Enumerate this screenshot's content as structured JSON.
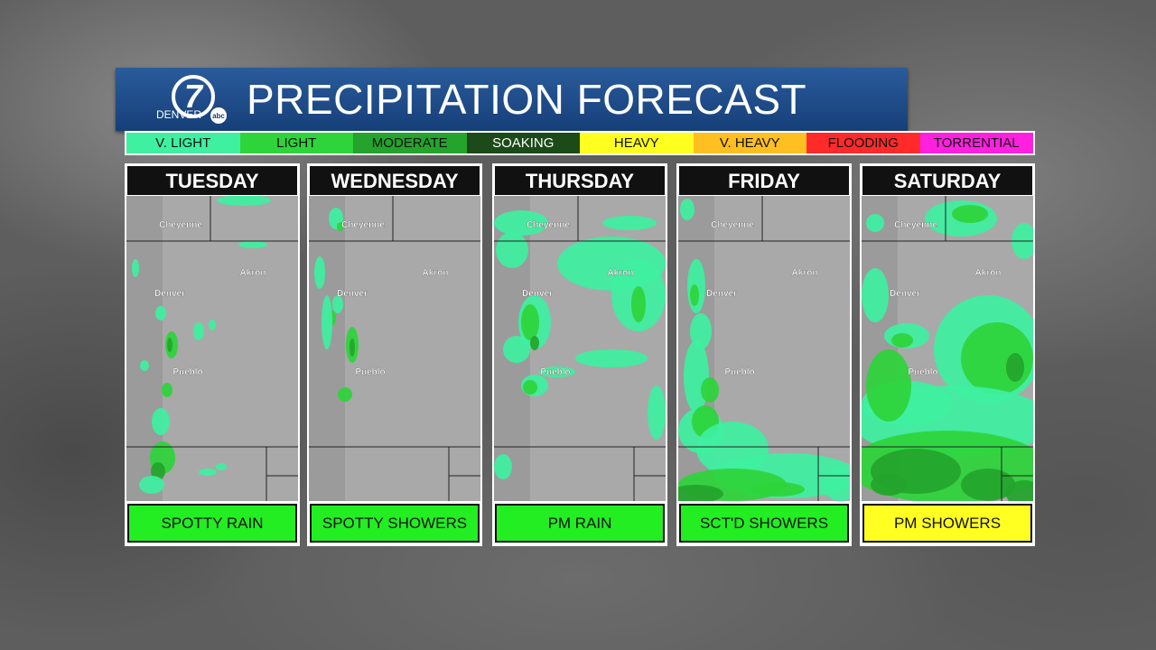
{
  "header": {
    "logo_number": "7",
    "logo_text": "DENVER",
    "logo_network": "abc",
    "title": "PRECIPITATION FORECAST"
  },
  "legend": [
    {
      "label": "V. LIGHT",
      "color": "#3ef0a0"
    },
    {
      "label": "LIGHT",
      "color": "#2ed43a"
    },
    {
      "label": "MODERATE",
      "color": "#24a42c"
    },
    {
      "label": "SOAKING",
      "color": "#1c4a18"
    },
    {
      "label": "HEAVY",
      "color": "#ffff20"
    },
    {
      "label": "V. HEAVY",
      "color": "#ffbf20"
    },
    {
      "label": "FLOODING",
      "color": "#ff2a2a"
    },
    {
      "label": "TORRENTIAL",
      "color": "#ff20e0"
    }
  ],
  "cities": [
    "Cheyenne",
    "Akron",
    "Denver",
    "Pueblo"
  ],
  "days": [
    {
      "day": "TUESDAY",
      "summary": "SPOTTY RAIN",
      "summary_color": "#22ee22"
    },
    {
      "day": "WEDNESDAY",
      "summary": "SPOTTY SHOWERS",
      "summary_color": "#22ee22"
    },
    {
      "day": "THURSDAY",
      "summary": "PM RAIN",
      "summary_color": "#22ee22"
    },
    {
      "day": "FRIDAY",
      "summary": "SCT'D SHOWERS",
      "summary_color": "#22ee22"
    },
    {
      "day": "SATURDAY",
      "summary": "PM SHOWERS",
      "summary_color": "#ffff22"
    }
  ]
}
